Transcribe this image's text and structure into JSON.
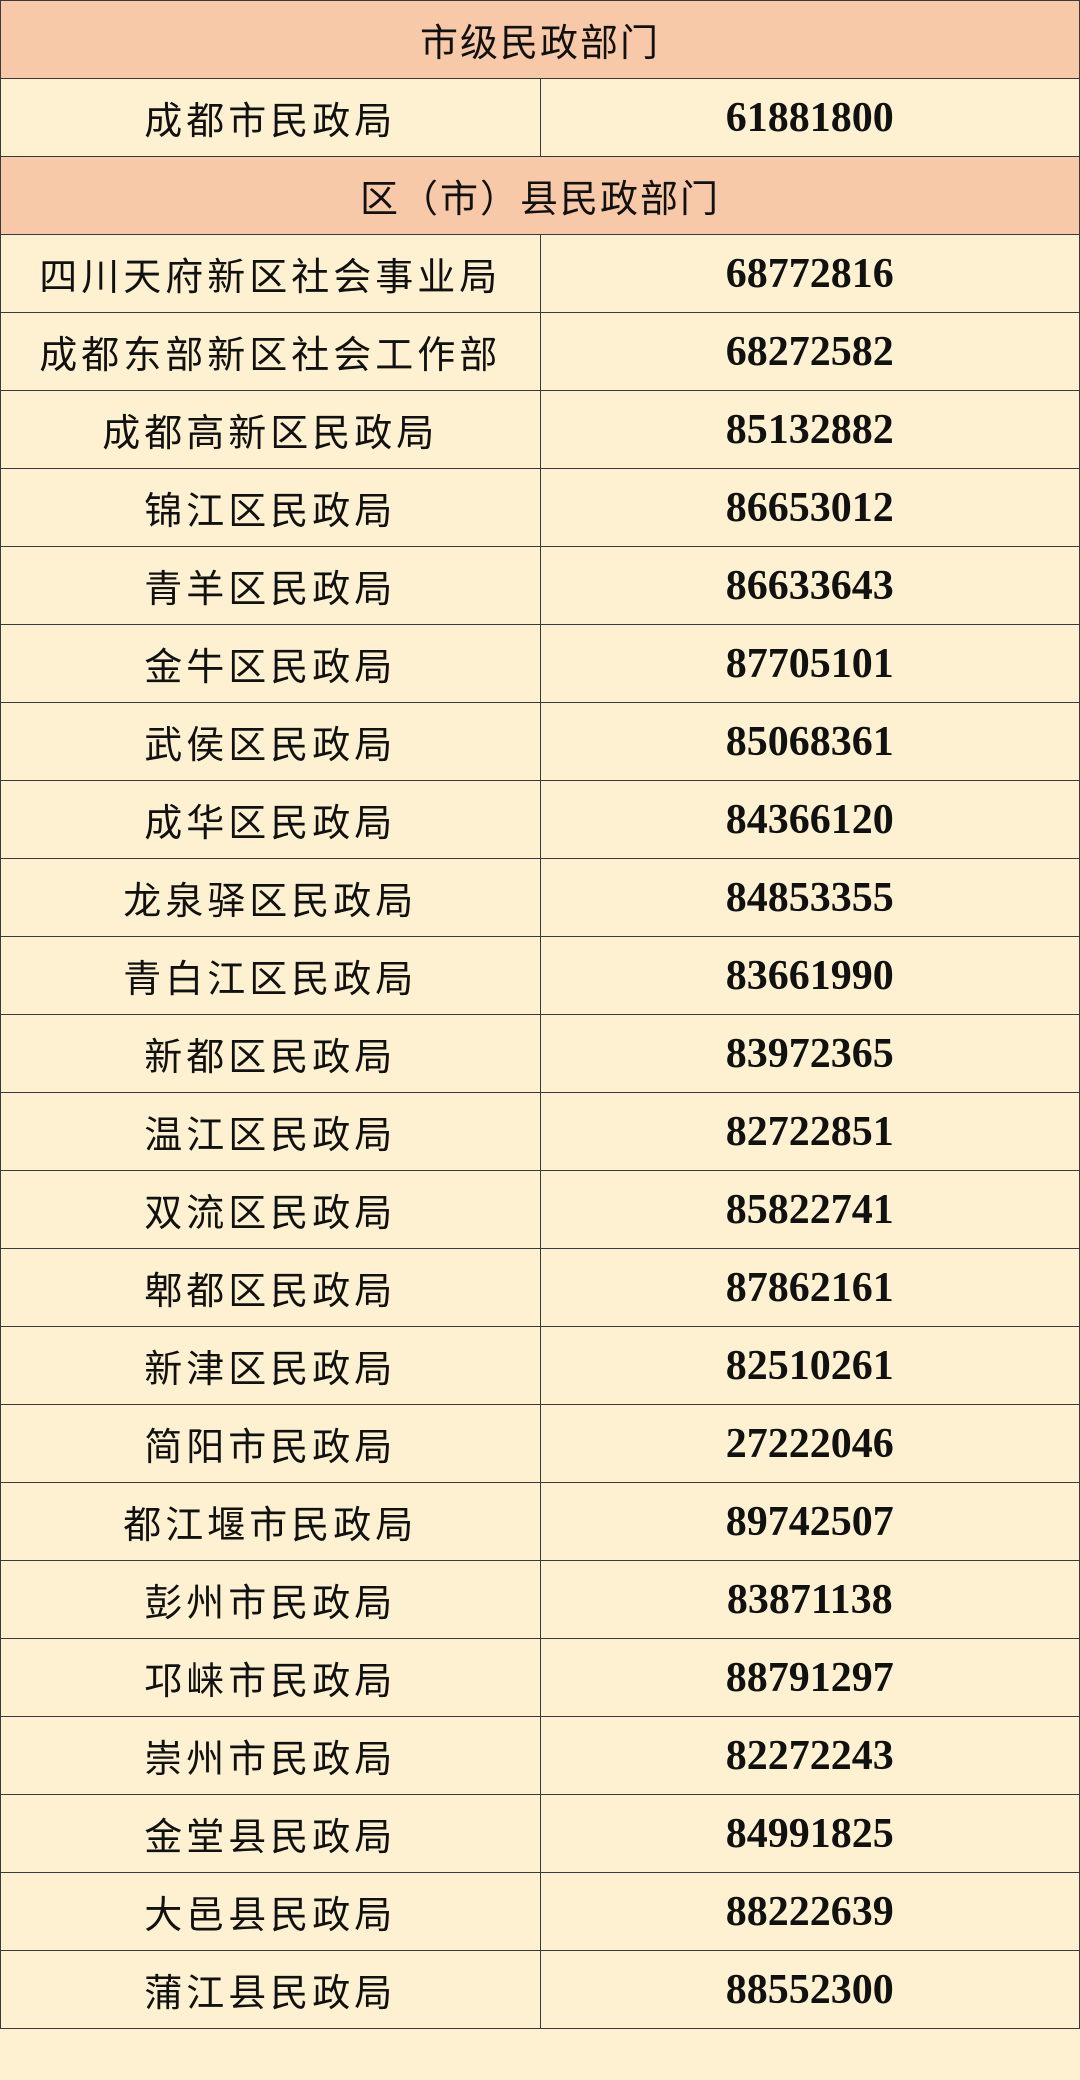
{
  "colors": {
    "section_bg": "#f8c9a8",
    "row_bg": "#fdf1d1",
    "border": "#3a3a3a"
  },
  "sections": [
    {
      "title": "市级民政部门",
      "rows": [
        {
          "name": "成都市民政局",
          "phone": "61881800"
        }
      ]
    },
    {
      "title": "区（市）县民政部门",
      "rows": [
        {
          "name": "四川天府新区社会事业局",
          "phone": "68772816"
        },
        {
          "name": "成都东部新区社会工作部",
          "phone": "68272582"
        },
        {
          "name": "成都高新区民政局",
          "phone": "85132882"
        },
        {
          "name": "锦江区民政局",
          "phone": "86653012"
        },
        {
          "name": "青羊区民政局",
          "phone": "86633643"
        },
        {
          "name": "金牛区民政局",
          "phone": "87705101"
        },
        {
          "name": "武侯区民政局",
          "phone": "85068361"
        },
        {
          "name": "成华区民政局",
          "phone": "84366120"
        },
        {
          "name": "龙泉驿区民政局",
          "phone": "84853355"
        },
        {
          "name": "青白江区民政局",
          "phone": "83661990"
        },
        {
          "name": "新都区民政局",
          "phone": "83972365"
        },
        {
          "name": "温江区民政局",
          "phone": "82722851"
        },
        {
          "name": "双流区民政局",
          "phone": "85822741"
        },
        {
          "name": "郫都区民政局",
          "phone": "87862161"
        },
        {
          "name": "新津区民政局",
          "phone": "82510261"
        },
        {
          "name": "简阳市民政局",
          "phone": "27222046"
        },
        {
          "name": "都江堰市民政局",
          "phone": "89742507"
        },
        {
          "name": "彭州市民政局",
          "phone": "83871138"
        },
        {
          "name": "邛崃市民政局",
          "phone": "88791297"
        },
        {
          "name": "崇州市民政局",
          "phone": "82272243"
        },
        {
          "name": "金堂县民政局",
          "phone": "84991825"
        },
        {
          "name": "大邑县民政局",
          "phone": "88222639"
        },
        {
          "name": "蒲江县民政局",
          "phone": "88552300"
        }
      ]
    }
  ]
}
